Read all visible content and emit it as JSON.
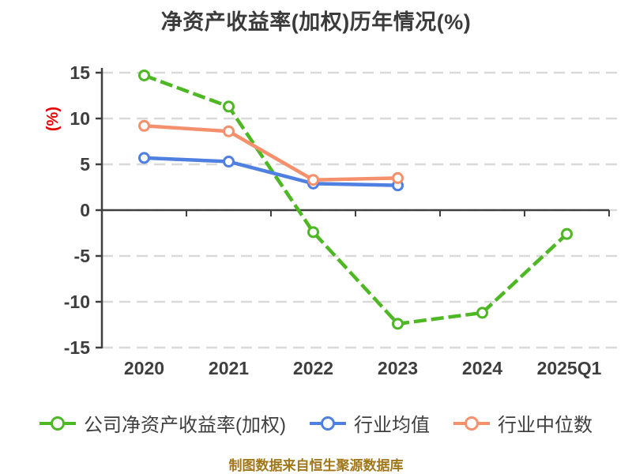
{
  "footer": {
    "caption": "制图数据来自恒生聚源数据库"
  },
  "colors": {
    "title_text": "#3b3b3b",
    "axis": "#3f3f3f",
    "gridline": "#d9d9d9",
    "tick_label": "#3e3e3e",
    "unit_label_red": "#e60000",
    "caption_gold": "#a1771a",
    "marker_fill": "#ffffff"
  },
  "chart_data": {
    "type": "line",
    "title": "净资产收益率(加权)历年情况(%)",
    "ylabel": "(%)",
    "xlabel": "",
    "categories": [
      "2020",
      "2021",
      "2022",
      "2023",
      "2024",
      "2025Q1"
    ],
    "yticks": [
      "15",
      "10",
      "5",
      "0",
      "-5",
      "-10",
      "-15"
    ],
    "ylim": [
      -15,
      15
    ],
    "grid": "horizontal-dashed",
    "legend_position": "bottom",
    "x_axis_position": "at-zero",
    "series": [
      {
        "name": "公司净资产收益率(加权)",
        "color": "#4db824",
        "line_style": "dashed",
        "marker": "hollow-circle",
        "values": [
          14.7,
          11.3,
          -2.4,
          -12.4,
          -11.2,
          -2.6
        ]
      },
      {
        "name": "行业均值",
        "color": "#4e7fe1",
        "line_style": "solid",
        "marker": "hollow-circle",
        "values": [
          5.7,
          5.3,
          2.9,
          2.7,
          null,
          null
        ]
      },
      {
        "name": "行业中位数",
        "color": "#f5906d",
        "line_style": "solid",
        "marker": "hollow-circle",
        "values": [
          9.2,
          8.6,
          3.3,
          3.5,
          null,
          null
        ]
      }
    ]
  }
}
